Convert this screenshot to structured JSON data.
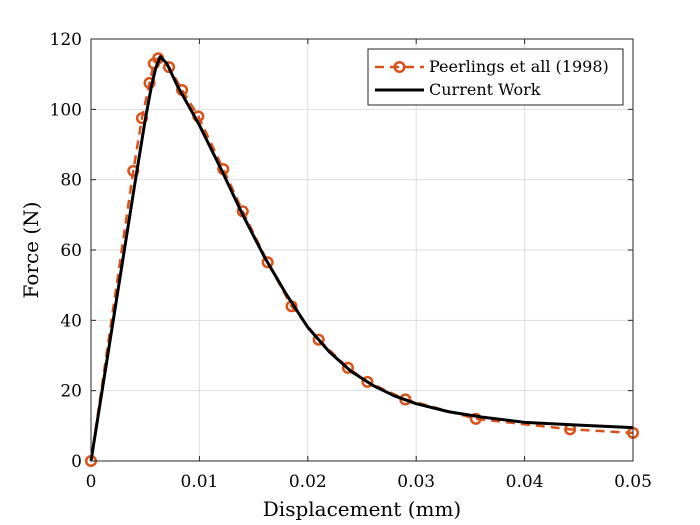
{
  "chart_data": {
    "type": "line",
    "title": "",
    "xlabel": "Displacement (mm)",
    "ylabel": "Force (N)",
    "xlim": [
      0,
      0.05
    ],
    "ylim": [
      0,
      120
    ],
    "xticks": [
      "0",
      "0.01",
      "0.02",
      "0.03",
      "0.04",
      "0.05"
    ],
    "yticks": [
      "0",
      "20",
      "40",
      "60",
      "80",
      "100",
      "120"
    ],
    "grid": true,
    "legend_position": "top-right",
    "series": [
      {
        "name": "Peerlings et all (1998)",
        "color": "#D95319",
        "style": "dashed-circles",
        "x": [
          0,
          0.0039,
          0.0047,
          0.0054,
          0.0058,
          0.0062,
          0.0072,
          0.0084,
          0.0099,
          0.0122,
          0.014,
          0.0163,
          0.0185,
          0.021,
          0.0237,
          0.0255,
          0.029,
          0.0355,
          0.0442,
          0.05
        ],
        "y": [
          0,
          82.5,
          97.5,
          107.5,
          113,
          114.5,
          112,
          105.5,
          98,
          83,
          71,
          56.5,
          44,
          34.5,
          26.5,
          22.5,
          17.5,
          12,
          9,
          8
        ]
      },
      {
        "name": "Current Work",
        "color": "#000000",
        "style": "solid",
        "x": [
          0,
          0.002,
          0.004,
          0.005,
          0.0056,
          0.006,
          0.0064,
          0.007,
          0.008,
          0.009,
          0.01,
          0.012,
          0.014,
          0.016,
          0.018,
          0.02,
          0.022,
          0.024,
          0.026,
          0.028,
          0.03,
          0.033,
          0.036,
          0.04,
          0.045,
          0.05
        ],
        "y": [
          0,
          39,
          78,
          97,
          107,
          112,
          115,
          113,
          106.5,
          101,
          95.5,
          83,
          70,
          58,
          47.5,
          38,
          31,
          25.5,
          21.5,
          18.5,
          16.3,
          14,
          12.5,
          11,
          10.2,
          9.5
        ]
      }
    ]
  }
}
